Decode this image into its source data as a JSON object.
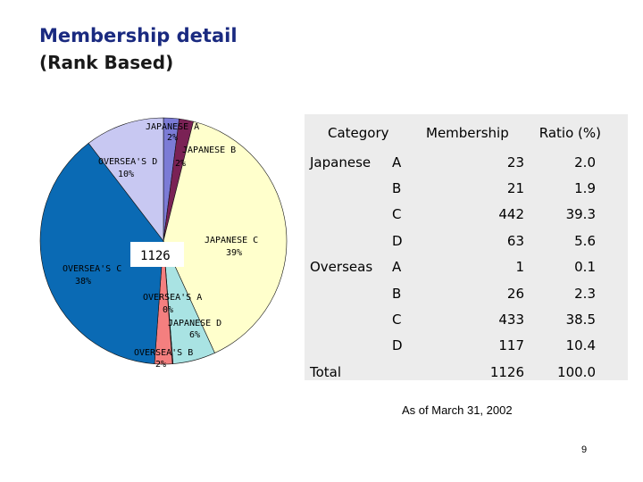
{
  "slide": {
    "title": "Membership detail",
    "subtitle": "(Rank Based)",
    "note": "As of March 31, 2002",
    "page_number": "9"
  },
  "chart_data": {
    "type": "pie",
    "center_label": "1126",
    "slices": [
      {
        "label": "JAPANESE  A",
        "percent_label": "2%",
        "value": 23,
        "color": "#7b7bd6"
      },
      {
        "label": "JAPANESE  B",
        "percent_label": "2%",
        "value": 21,
        "color": "#7a2255"
      },
      {
        "label": "JAPANESE  C",
        "percent_label": "39%",
        "value": 442,
        "color": "#ffffcc"
      },
      {
        "label": "JAPANESE  D",
        "percent_label": "6%",
        "value": 63,
        "color": "#a9e3e3"
      },
      {
        "label": "OVERSEA'S A",
        "percent_label": "0%",
        "value": 1,
        "color": "#550055"
      },
      {
        "label": "OVERSEA'S B",
        "percent_label": "2%",
        "value": 26,
        "color": "#f47f7f"
      },
      {
        "label": "OVERSEA'S C",
        "percent_label": "38%",
        "value": 433,
        "color": "#0a6ab4"
      },
      {
        "label": "OVERSEA'S D",
        "percent_label": "10%",
        "value": 117,
        "color": "#c8c8f2"
      }
    ]
  },
  "table": {
    "headers": {
      "category": "Category",
      "membership": "Membership",
      "ratio": "Ratio (%)"
    },
    "rows": [
      {
        "group": "Japanese",
        "rank": "A",
        "membership": "23",
        "ratio": "2.0"
      },
      {
        "group": "",
        "rank": "B",
        "membership": "21",
        "ratio": "1.9"
      },
      {
        "group": "",
        "rank": "C",
        "membership": "442",
        "ratio": "39.3"
      },
      {
        "group": "",
        "rank": "D",
        "membership": "63",
        "ratio": "5.6"
      },
      {
        "group": "Overseas",
        "rank": "A",
        "membership": "1",
        "ratio": "0.1"
      },
      {
        "group": "",
        "rank": "B",
        "membership": "26",
        "ratio": "2.3"
      },
      {
        "group": "",
        "rank": "C",
        "membership": "433",
        "ratio": "38.5"
      },
      {
        "group": "",
        "rank": "D",
        "membership": "117",
        "ratio": "10.4"
      },
      {
        "group": "Total",
        "rank": "",
        "membership": "1126",
        "ratio": "100.0"
      }
    ]
  }
}
